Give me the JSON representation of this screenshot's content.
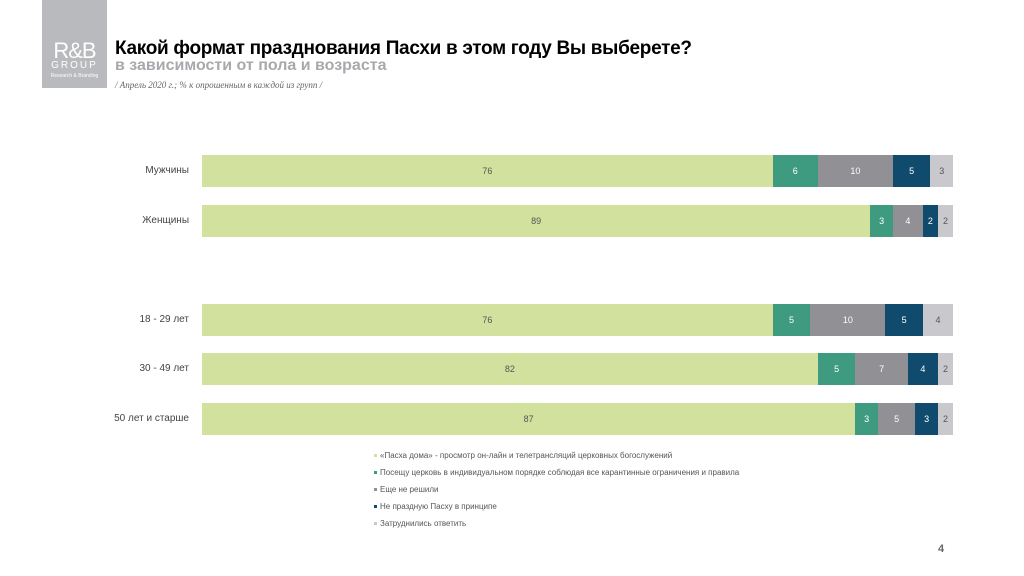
{
  "logo": {
    "line1": "R&B",
    "line2": "GROUP",
    "line3": "Research & Branding"
  },
  "header": {
    "title": "Какой формат празднования Пасхи в этом году Вы выберете?",
    "subtitle": "в зависимости от пола и возраста",
    "note": "/ Апрель 2020 г.; % к опрошенным в каждой из групп /"
  },
  "chart_data": {
    "type": "bar",
    "stacked": true,
    "orientation": "horizontal",
    "categories": [
      "Мужчины",
      "Женщины",
      "18 - 29 лет",
      "30 - 49 лет",
      "50 лет и старше"
    ],
    "series": [
      {
        "name": "«Пасха дома» - просмотр он-лайн и телетрансляций церковных богослужений",
        "color": "#d3e19e",
        "text_color": "#555555",
        "values": [
          76,
          89,
          76,
          82,
          87
        ]
      },
      {
        "name": "Посещу церковь в индивидуальном порядке соблюдая все карантинные ограничения и правила",
        "color": "#3e9b7f",
        "text_color": "#ffffff",
        "values": [
          6,
          3,
          5,
          5,
          3
        ]
      },
      {
        "name": "Еще не решили",
        "color": "#909095",
        "text_color": "#ffffff",
        "values": [
          10,
          4,
          10,
          7,
          5
        ]
      },
      {
        "name": "Не праздную Пасху в принципе",
        "color": "#104a6d",
        "text_color": "#ffffff",
        "values": [
          5,
          2,
          5,
          4,
          3
        ]
      },
      {
        "name": "Затруднились ответить",
        "color": "#c9c9cd",
        "text_color": "#555555",
        "values": [
          3,
          2,
          4,
          2,
          2
        ]
      }
    ],
    "legend": "bottom"
  },
  "page_number": "4"
}
